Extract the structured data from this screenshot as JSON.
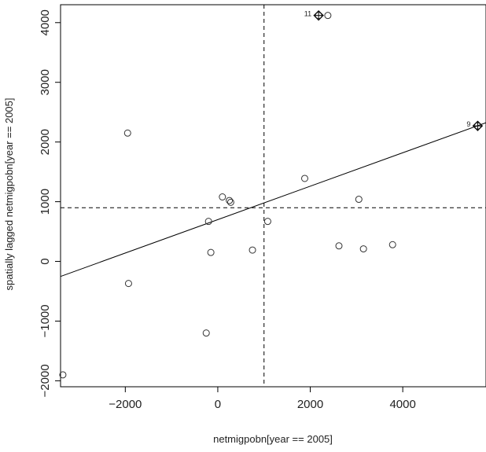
{
  "chart_data": {
    "type": "scatter",
    "xlabel": "netmigpobn[year == 2005]",
    "ylabel": "spatially lagged netmigpobn[year == 2005]",
    "xlim": [
      -3400,
      5800
    ],
    "ylim": [
      -2100,
      4300
    ],
    "x_ticks": [
      -2000,
      0,
      2000,
      4000
    ],
    "y_ticks": [
      -2000,
      -1000,
      0,
      1000,
      2000,
      3000,
      4000
    ],
    "x_tick_labels": [
      "−2000",
      "0",
      "2000",
      "4000"
    ],
    "y_tick_labels": [
      "−2000",
      "−1000",
      "0",
      "1000",
      "2000",
      "3000",
      "4000"
    ],
    "mean_x": 1000,
    "mean_y": 900,
    "regression": {
      "intercept": 700,
      "slope": 0.28
    },
    "points": [
      {
        "x": -3350,
        "y": -1900
      },
      {
        "x": -1950,
        "y": 2150
      },
      {
        "x": -1930,
        "y": -370
      },
      {
        "x": -250,
        "y": -1200
      },
      {
        "x": -200,
        "y": 670
      },
      {
        "x": -150,
        "y": 150
      },
      {
        "x": 100,
        "y": 1080
      },
      {
        "x": 250,
        "y": 1020
      },
      {
        "x": 280,
        "y": 990
      },
      {
        "x": 750,
        "y": 190
      },
      {
        "x": 1080,
        "y": 670
      },
      {
        "x": 1880,
        "y": 1390
      },
      {
        "x": 2380,
        "y": 4120
      },
      {
        "x": 2620,
        "y": 260
      },
      {
        "x": 3050,
        "y": 1040
      },
      {
        "x": 3150,
        "y": 210
      },
      {
        "x": 3780,
        "y": 280
      }
    ],
    "influential_points": [
      {
        "x": 2180,
        "y": 4120,
        "label": "11"
      },
      {
        "x": 5620,
        "y": 2270,
        "label": "9"
      }
    ],
    "grid": false
  }
}
